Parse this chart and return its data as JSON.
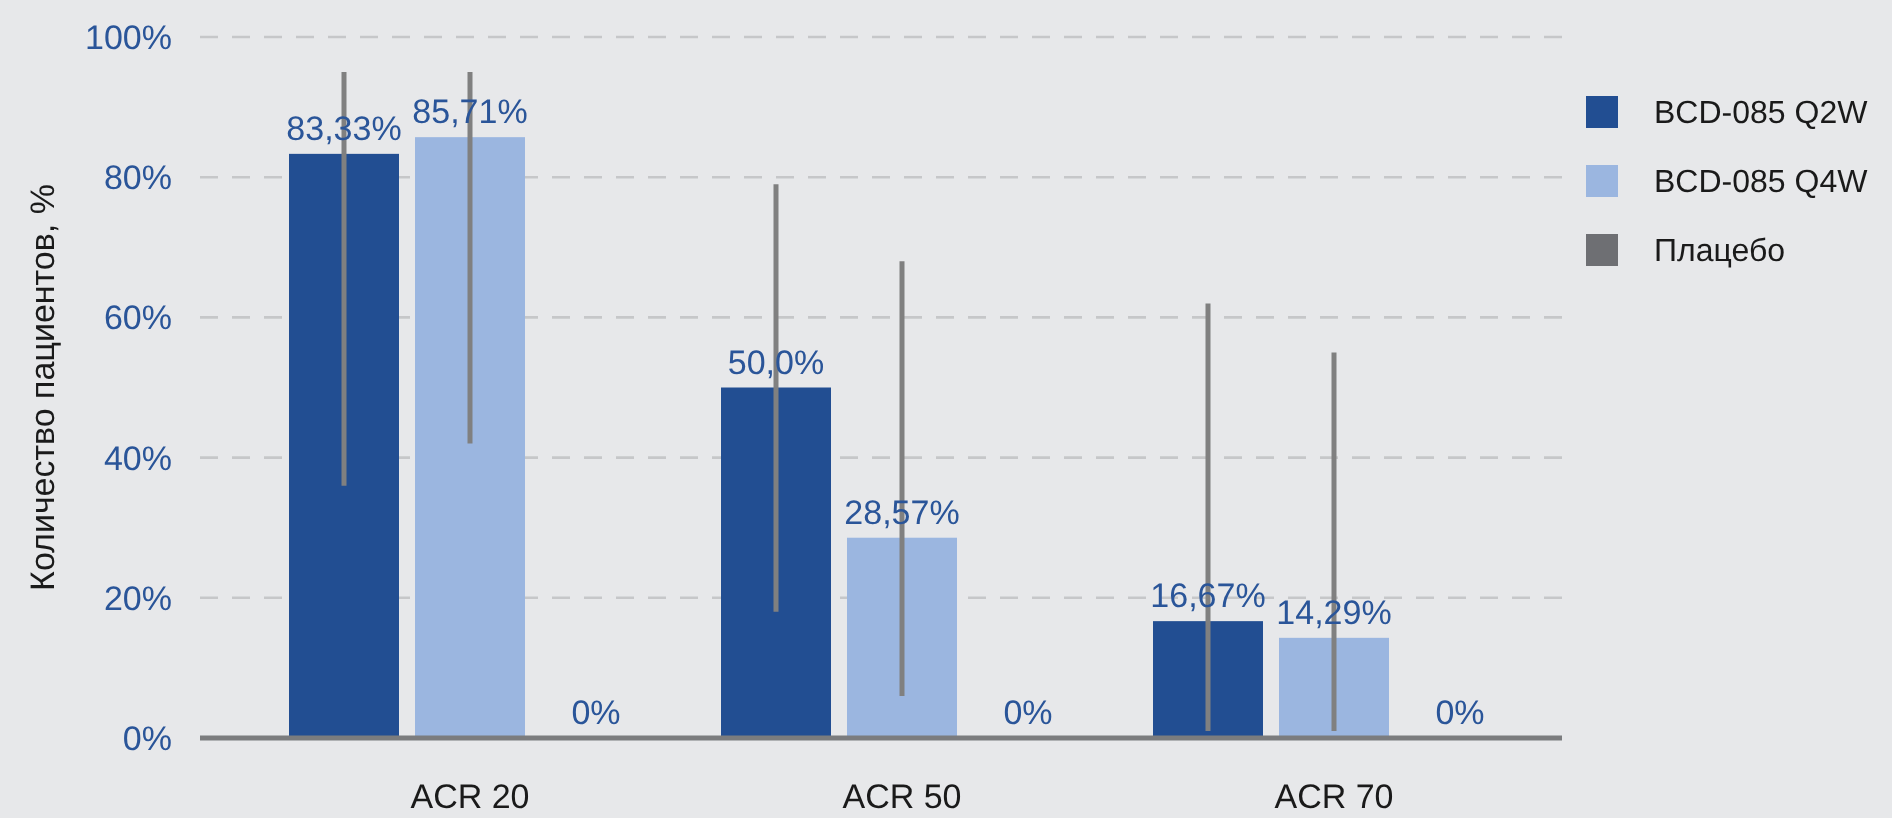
{
  "chart_data": {
    "type": "bar",
    "ylabel": "Количество пациентов, %",
    "categories": [
      "ACR 20",
      "ACR 50",
      "ACR 70"
    ],
    "ylim": [
      0,
      100
    ],
    "yticks": [
      {
        "value": 0,
        "label": "0%"
      },
      {
        "value": 20,
        "label": "20%"
      },
      {
        "value": 40,
        "label": "40%"
      },
      {
        "value": 60,
        "label": "60%"
      },
      {
        "value": 80,
        "label": "80%"
      },
      {
        "value": 100,
        "label": "100%"
      }
    ],
    "grid": "y",
    "legend": "right",
    "series": [
      {
        "name": "BCD-085 Q2W",
        "color": "#224e92",
        "values": [
          83.33,
          50.0,
          16.67
        ],
        "value_labels": [
          "83,33%",
          "50,0%",
          "16,67%"
        ],
        "errors": [
          [
            36,
            95
          ],
          [
            18,
            79
          ],
          [
            1,
            62
          ]
        ]
      },
      {
        "name": "BCD-085 Q4W",
        "color": "#9bb6e0",
        "values": [
          85.71,
          28.57,
          14.29
        ],
        "value_labels": [
          "85,71%",
          "28,57%",
          "14,29%"
        ],
        "errors": [
          [
            42,
            95
          ],
          [
            6,
            68
          ],
          [
            1,
            55
          ]
        ]
      },
      {
        "name": "Плацебо",
        "color": "#6e6f73",
        "values": [
          0,
          0,
          0
        ],
        "value_labels": [
          "0%",
          "0%",
          "0%"
        ]
      }
    ]
  }
}
